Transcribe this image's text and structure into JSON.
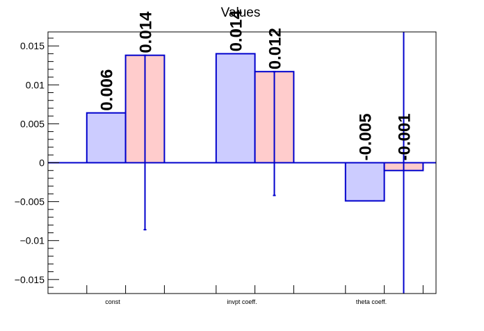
{
  "chart_data": {
    "type": "bar",
    "title": "Values",
    "xlabel": "",
    "ylabel": "",
    "categories": [
      "const",
      "invpt coeff.",
      "theta coeff."
    ],
    "ylim": [
      -0.0168,
      0.0168
    ],
    "yticks": [
      -0.015,
      -0.01,
      -0.005,
      0,
      0.005,
      0.01,
      0.015
    ],
    "ytick_labels": [
      "−0.015",
      "−0.01",
      "−0.005",
      "0",
      "0.005",
      "0.01",
      "0.015"
    ],
    "grid": false,
    "series": [
      {
        "values": [
          0.0064,
          0.014,
          -0.0049
        ],
        "labels": [
          "0.006",
          "0.014",
          "-0.005"
        ],
        "err_low": [
          0,
          0,
          0
        ],
        "err_high": [
          0,
          0,
          0
        ],
        "fill": "#ccccff",
        "stroke": "#0000cc"
      },
      {
        "values": [
          0.0138,
          0.0117,
          -0.001
        ],
        "labels": [
          "0.014",
          "0.012",
          "-0.001"
        ],
        "err_low": [
          -0.0086,
          -0.0042,
          -0.0168
        ],
        "err_high": [
          0.0138,
          0.0117,
          0.0168
        ],
        "fill": "#ffcccc",
        "stroke": "#0000cc"
      }
    ],
    "colors": {
      "zero_line": "#0000cc",
      "error_bar": "#0000cc",
      "axis": "#000000"
    }
  }
}
